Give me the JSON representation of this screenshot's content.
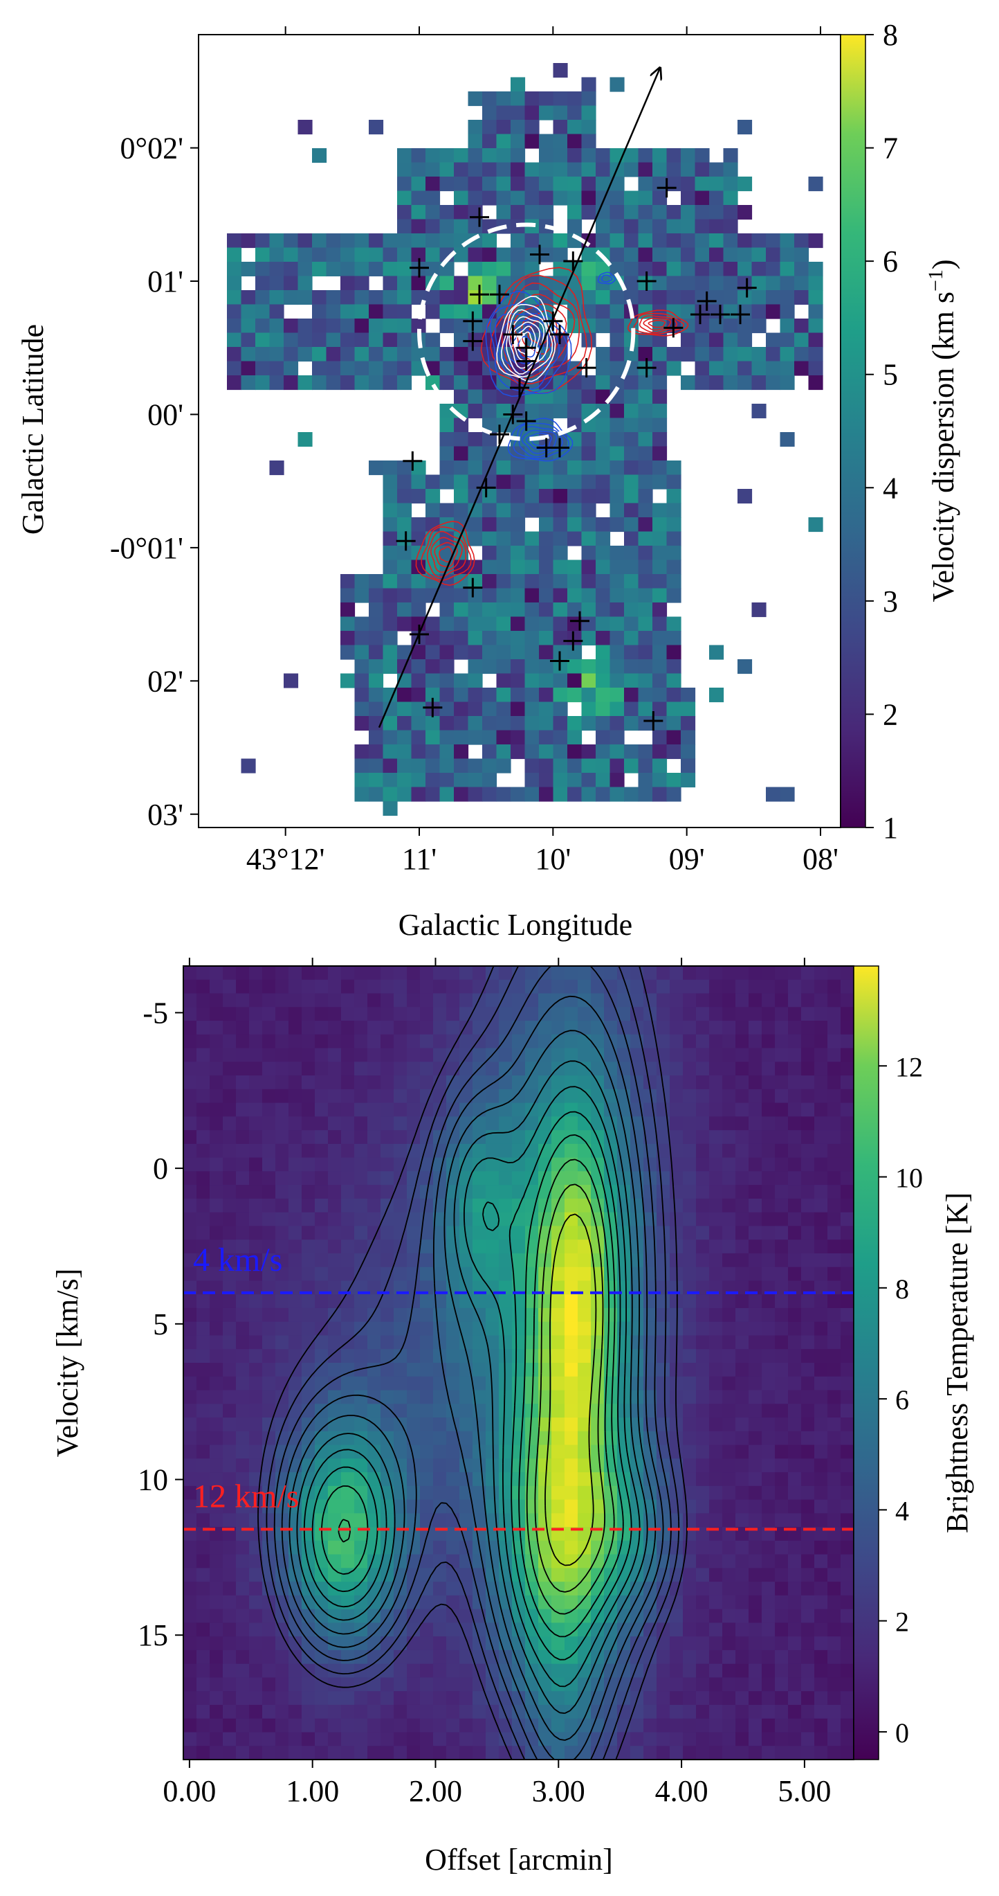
{
  "chart_data": [
    {
      "type": "heatmap",
      "title": "",
      "xlabel": "Galactic Longitude",
      "ylabel": "Galactic Latitude",
      "x_ticks": [
        "43°12'",
        "11'",
        "10'",
        "09'",
        "08'"
      ],
      "y_ticks": [
        "0°02'",
        "01'",
        "00'",
        "-0°01'",
        "02'",
        "03'"
      ],
      "x_tick_values_arcmin": [
        12,
        11,
        10,
        9,
        8
      ],
      "y_tick_values_arcmin": [
        2,
        1,
        0,
        -1,
        -2,
        -3
      ],
      "x_range_arcmin": [
        12.65,
        7.85
      ],
      "y_range_arcmin": [
        2.85,
        -3.1
      ],
      "colorbar": {
        "label": "Velocity dispersion (km s",
        "label_sup": "−1",
        "label_close": ")",
        "range": [
          1,
          8
        ],
        "ticks": [
          "1",
          "2",
          "3",
          "4",
          "5",
          "6",
          "7",
          "8"
        ],
        "tick_values": [
          1,
          2,
          3,
          4,
          5,
          6,
          7,
          8
        ],
        "colormap": "viridis"
      },
      "circle": {
        "center_arcmin": [
          10.2,
          0.62
        ],
        "radius_arcmin": 0.8,
        "style": "white dashed"
      },
      "arrow": {
        "from_arcmin": [
          11.3,
          -2.35
        ],
        "to_arcmin": [
          9.2,
          2.6
        ]
      },
      "sources_arcmin": [
        [
          10.55,
          1.48
        ],
        [
          11.0,
          1.1
        ],
        [
          10.55,
          0.9
        ],
        [
          10.4,
          0.9
        ],
        [
          10.1,
          1.2
        ],
        [
          9.85,
          1.15
        ],
        [
          9.3,
          1.0
        ],
        [
          8.85,
          0.85
        ],
        [
          8.75,
          0.75
        ],
        [
          8.55,
          0.95
        ],
        [
          8.6,
          0.75
        ],
        [
          8.9,
          0.75
        ],
        [
          9.1,
          0.65
        ],
        [
          10.6,
          0.7
        ],
        [
          10.6,
          0.55
        ],
        [
          10.3,
          0.6
        ],
        [
          10.2,
          0.5
        ],
        [
          10.0,
          0.7
        ],
        [
          9.95,
          0.6
        ],
        [
          10.2,
          0.4
        ],
        [
          9.75,
          0.35
        ],
        [
          9.3,
          0.35
        ],
        [
          10.25,
          0.2
        ],
        [
          10.3,
          0.0
        ],
        [
          10.2,
          -0.05
        ],
        [
          10.4,
          -0.15
        ],
        [
          10.05,
          -0.25
        ],
        [
          9.95,
          -0.25
        ],
        [
          11.05,
          -0.35
        ],
        [
          10.5,
          -0.55
        ],
        [
          11.1,
          -0.95
        ],
        [
          10.6,
          -1.3
        ],
        [
          11.0,
          -1.65
        ],
        [
          9.8,
          -1.55
        ],
        [
          9.85,
          -1.7
        ],
        [
          9.95,
          -1.85
        ],
        [
          10.9,
          -2.2
        ],
        [
          9.25,
          -2.3
        ],
        [
          9.15,
          1.7
        ]
      ],
      "red_contour_centers_arcmin": [
        [
          10.2,
          0.55
        ],
        [
          9.2,
          0.65
        ],
        [
          10.75,
          -1.05
        ]
      ],
      "blue_contour_centers_arcmin": [
        [
          10.15,
          0.55
        ],
        [
          10.1,
          -0.15
        ]
      ]
    },
    {
      "type": "heatmap",
      "title": "",
      "xlabel": "Offset [arcmin]",
      "ylabel": "Velocity [km/s]",
      "x_ticks": [
        "0.00",
        "1.00",
        "2.00",
        "3.00",
        "4.00",
        "5.00"
      ],
      "y_ticks": [
        "-5",
        "0",
        "5",
        "10",
        "15"
      ],
      "x_tick_values": [
        0,
        1,
        2,
        3,
        4,
        5
      ],
      "y_tick_values": [
        -5,
        0,
        5,
        10,
        15
      ],
      "x_range": [
        -0.05,
        5.4
      ],
      "y_range": [
        -6.5,
        19.0
      ],
      "colorbar": {
        "label": "Brightness Temperature [K]",
        "range": [
          -0.5,
          13.8
        ],
        "ticks": [
          "0",
          "2",
          "4",
          "6",
          "8",
          "10",
          "12"
        ],
        "tick_values": [
          0,
          2,
          4,
          6,
          8,
          10,
          12
        ],
        "colormap": "viridis"
      },
      "hlines": [
        {
          "y": 4,
          "label": "4 km/s",
          "color": "#1a1aff"
        },
        {
          "y": 11.6,
          "label": "12 km/s",
          "color": "#ff2020"
        }
      ],
      "components": [
        {
          "x": 3.15,
          "y": 4.0,
          "sx": 0.26,
          "sy": 4.2,
          "amp": 7.5
        },
        {
          "x": 3.0,
          "y": 12.2,
          "sx": 0.33,
          "sy": 3.3,
          "amp": 7.0
        },
        {
          "x": 3.1,
          "y": 4.0,
          "sx": 0.55,
          "sy": 9.5,
          "amp": 4.0
        },
        {
          "x": 3.55,
          "y": 11.8,
          "sx": 0.28,
          "sy": 1.7,
          "amp": 3.0
        },
        {
          "x": 1.25,
          "y": 11.8,
          "sx": 0.33,
          "sy": 2.5,
          "amp": 8.0
        },
        {
          "x": 2.35,
          "y": 1.0,
          "sx": 0.22,
          "sy": 2.2,
          "amp": 3.2
        },
        {
          "x": 2.4,
          "y": 3.5,
          "sx": 0.7,
          "sy": 5.0,
          "amp": 1.8
        },
        {
          "x": 1.6,
          "y": 8.0,
          "sx": 0.9,
          "sy": 4.5,
          "amp": 1.3
        },
        {
          "x": 3.05,
          "y": 18.0,
          "sx": 0.2,
          "sy": 2.0,
          "amp": 1.5
        }
      ],
      "background": 0.6,
      "contour_levels": [
        2.0,
        2.5,
        3.1,
        3.8,
        4.6,
        5.5,
        6.4,
        7.4,
        8.4,
        9.5,
        10.6,
        11.8
      ]
    }
  ]
}
